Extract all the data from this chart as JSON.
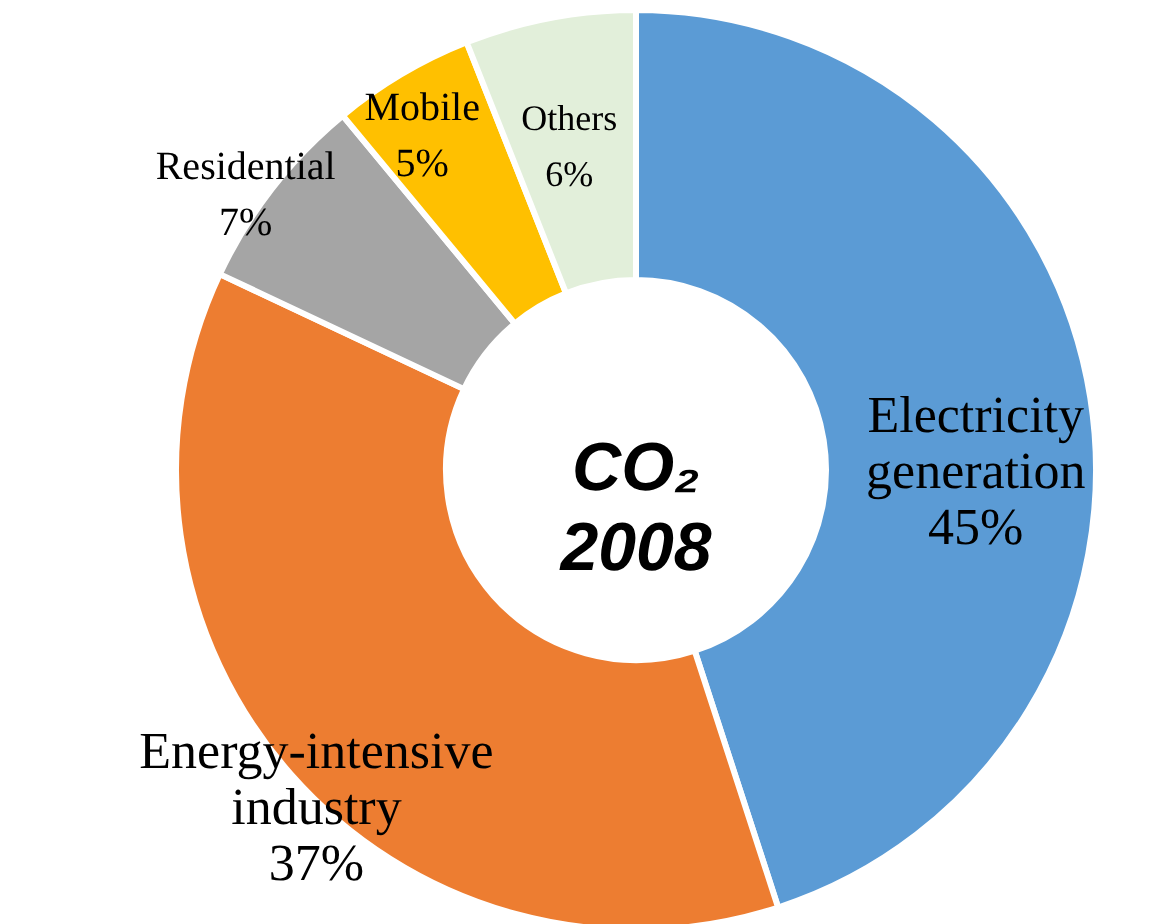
{
  "chart_data": {
    "type": "donut",
    "title": "CO₂ 2008",
    "categories": [
      "Electricity generation",
      "Energy-intensive industry",
      "Residential",
      "Mobile",
      "Others"
    ],
    "values": [
      45,
      37,
      7,
      5,
      6
    ],
    "value_labels": [
      "45%",
      "37%",
      "7%",
      "5%",
      "6%"
    ],
    "colors": [
      "#5b9bd5",
      "#ed7d31",
      "#a5a5a5",
      "#ffc000",
      "#e2efda"
    ]
  }
}
